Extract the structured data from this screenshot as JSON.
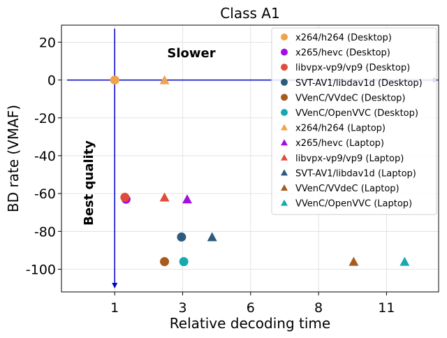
{
  "chart_data": {
    "type": "scatter",
    "title": "Class A1",
    "xlabel": "Relative decoding time",
    "ylabel": "BD rate (VMAF)",
    "xlim": [
      -1.35,
      15.3
    ],
    "ylim": [
      -112,
      29
    ],
    "xticks": [
      1,
      3,
      6,
      8,
      11
    ],
    "xtick_positions": [
      1,
      4,
      7,
      10,
      13
    ],
    "yticks": [
      20,
      0,
      -20,
      -40,
      -60,
      -80,
      -100
    ],
    "ytick_labels": [
      "20",
      "0",
      "-20",
      "-40",
      "-60",
      "-80",
      "-100"
    ],
    "grid": true,
    "legend_position": "top-right",
    "annotations": [
      {
        "text": "Slower"
      },
      {
        "text": "Best quality"
      }
    ],
    "series": [
      {
        "name": "x264/h264 (Desktop)",
        "marker": "circle",
        "color": "#f0a34a",
        "points": [
          {
            "x": 1.0,
            "y": 0
          }
        ]
      },
      {
        "name": "x265/hevc (Desktop)",
        "marker": "circle",
        "color": "#a40ee0",
        "points": [
          {
            "x": 1.5,
            "y": -63
          }
        ]
      },
      {
        "name": "libvpx-vp9/vp9 (Desktop)",
        "marker": "circle",
        "color": "#e04c3c",
        "points": [
          {
            "x": 1.45,
            "y": -62
          }
        ]
      },
      {
        "name": "SVT-AV1/libdav1d (Desktop)",
        "marker": "circle",
        "color": "#2e5a7c",
        "points": [
          {
            "x": 3.95,
            "y": -83
          }
        ]
      },
      {
        "name": "VVenC/VVdeC (Desktop)",
        "marker": "circle",
        "color": "#a85a1c",
        "points": [
          {
            "x": 3.2,
            "y": -96
          }
        ]
      },
      {
        "name": "VVenC/OpenVVC (Desktop)",
        "marker": "circle",
        "color": "#18a8b0",
        "points": [
          {
            "x": 4.05,
            "y": -96
          }
        ]
      },
      {
        "name": "x264/h264 (Laptop)",
        "marker": "triangle",
        "color": "#f0a34a",
        "points": [
          {
            "x": 3.2,
            "y": 0
          }
        ]
      },
      {
        "name": "x265/hevc (Laptop)",
        "marker": "triangle",
        "color": "#a40ee0",
        "points": [
          {
            "x": 4.2,
            "y": -63
          }
        ]
      },
      {
        "name": "libvpx-vp9/vp9 (Laptop)",
        "marker": "triangle",
        "color": "#e04c3c",
        "points": [
          {
            "x": 3.2,
            "y": -62
          }
        ]
      },
      {
        "name": "SVT-AV1/libdav1d (Laptop)",
        "marker": "triangle",
        "color": "#2e5a7c",
        "points": [
          {
            "x": 5.3,
            "y": -83
          }
        ]
      },
      {
        "name": "VVenC/VVdeC (Laptop)",
        "marker": "triangle",
        "color": "#a85a1c",
        "points": [
          {
            "x": 11.55,
            "y": -96
          }
        ]
      },
      {
        "name": "VVenC/OpenVVC (Laptop)",
        "marker": "triangle",
        "color": "#18a8b0",
        "points": [
          {
            "x": 13.8,
            "y": -96
          }
        ]
      }
    ]
  }
}
